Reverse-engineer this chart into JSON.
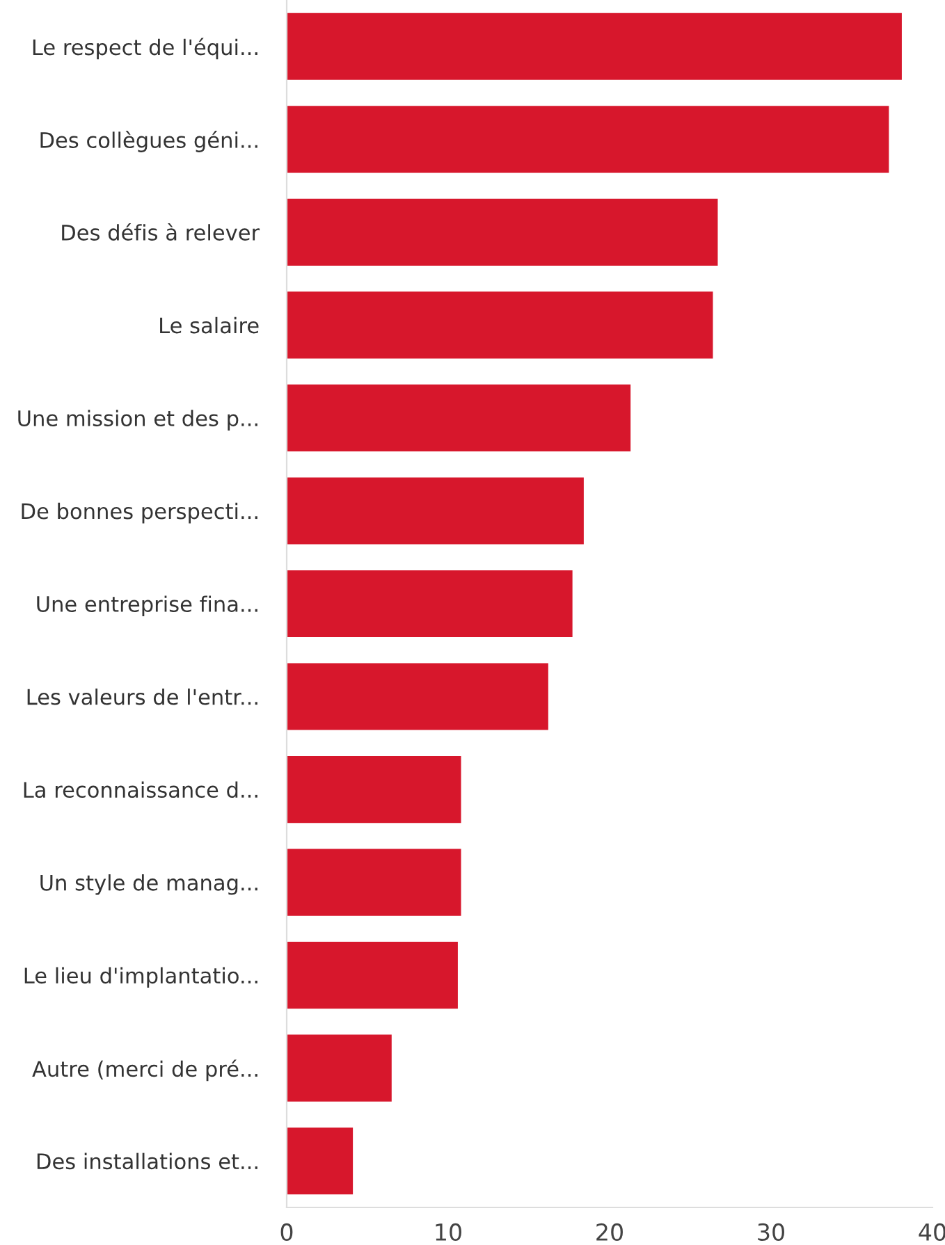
{
  "chart_data": {
    "type": "bar",
    "orientation": "horizontal",
    "categories": [
      "Le respect de l'équi...",
      "Des collègues géni...",
      "Des défis à relever",
      "Le salaire",
      "Une mission et des p...",
      "De bonnes perspecti...",
      "Une entreprise fina...",
      "Les valeurs de l'entr...",
      "La reconnaissance d...",
      "Un style de manag...",
      "Le lieu d'implantatio...",
      "Autre (merci de pré...",
      "Des installations et..."
    ],
    "values": [
      38.1,
      37.3,
      26.7,
      26.4,
      21.3,
      18.4,
      17.7,
      16.2,
      10.8,
      10.8,
      10.6,
      6.5,
      4.1
    ],
    "color": "#d7172c",
    "xlim": [
      0,
      40
    ],
    "xticks": [
      0,
      10,
      20,
      30,
      40
    ],
    "grid": false
  }
}
